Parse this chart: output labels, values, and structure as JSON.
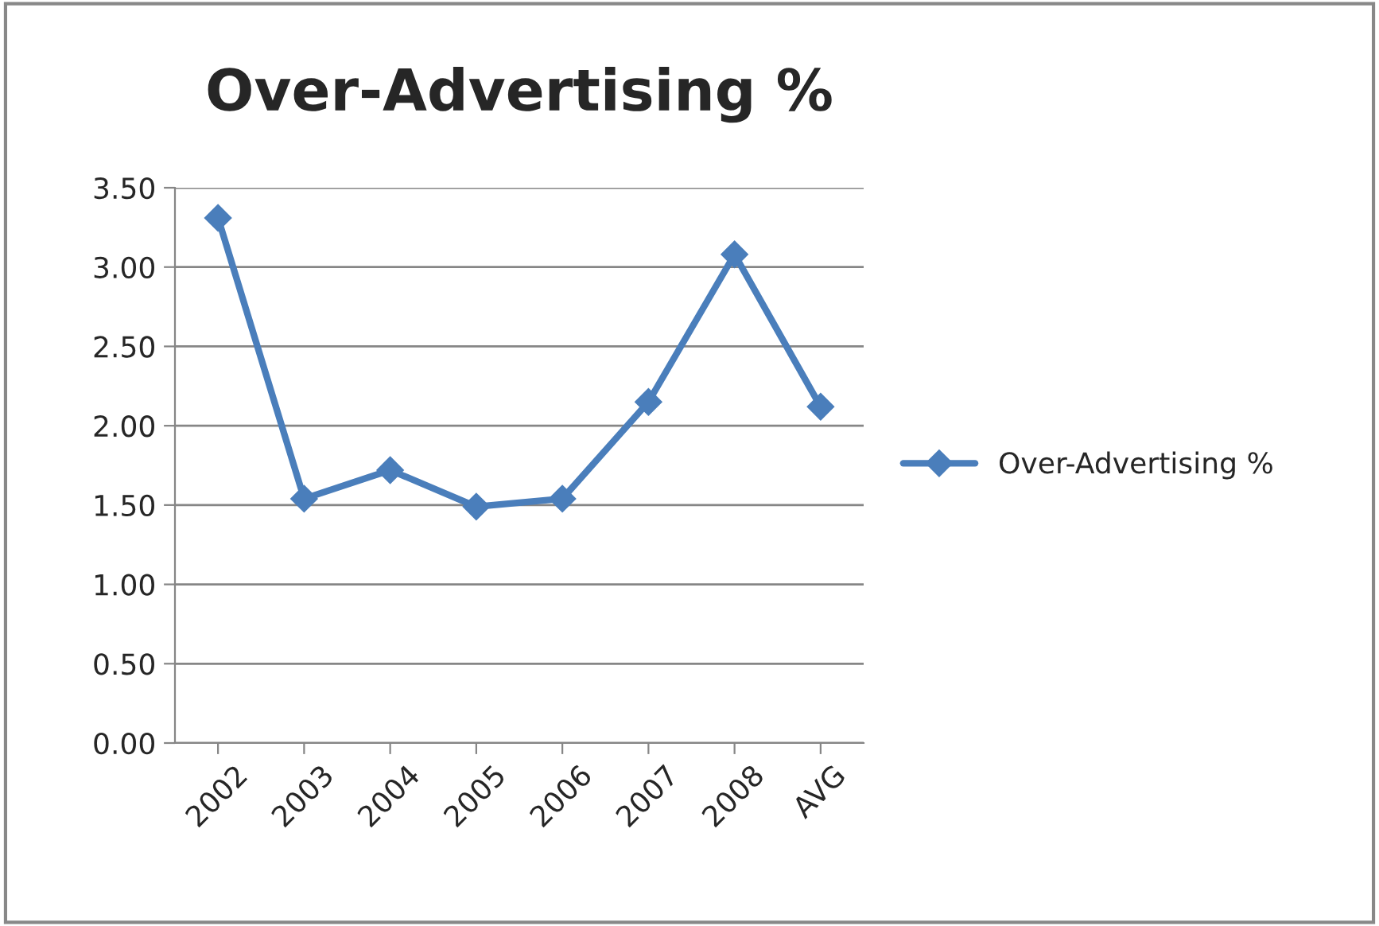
{
  "chart_data": {
    "type": "line",
    "title": "Over-Advertising %",
    "categories": [
      "2002",
      "2003",
      "2004",
      "2005",
      "2006",
      "2007",
      "2008",
      "AVG"
    ],
    "series": [
      {
        "name": "Over-Advertising %",
        "color": "#4a7ebb",
        "values": [
          3.31,
          1.54,
          1.72,
          1.49,
          1.54,
          2.15,
          3.08,
          2.12
        ]
      }
    ],
    "ylim": [
      0,
      3.5
    ],
    "yticks": [
      {
        "value": 0,
        "label": "0.00"
      },
      {
        "value": 0.5,
        "label": "0.50"
      },
      {
        "value": 1,
        "label": "1.00"
      },
      {
        "value": 1.5,
        "label": "1.50"
      },
      {
        "value": 2,
        "label": "2.00"
      },
      {
        "value": 2.5,
        "label": "2.50"
      },
      {
        "value": 3,
        "label": "3.00"
      },
      {
        "value": 3.5,
        "label": "3.50"
      }
    ],
    "grid": "y",
    "legend": "right",
    "marker": "diamond",
    "line_style": "solid"
  }
}
